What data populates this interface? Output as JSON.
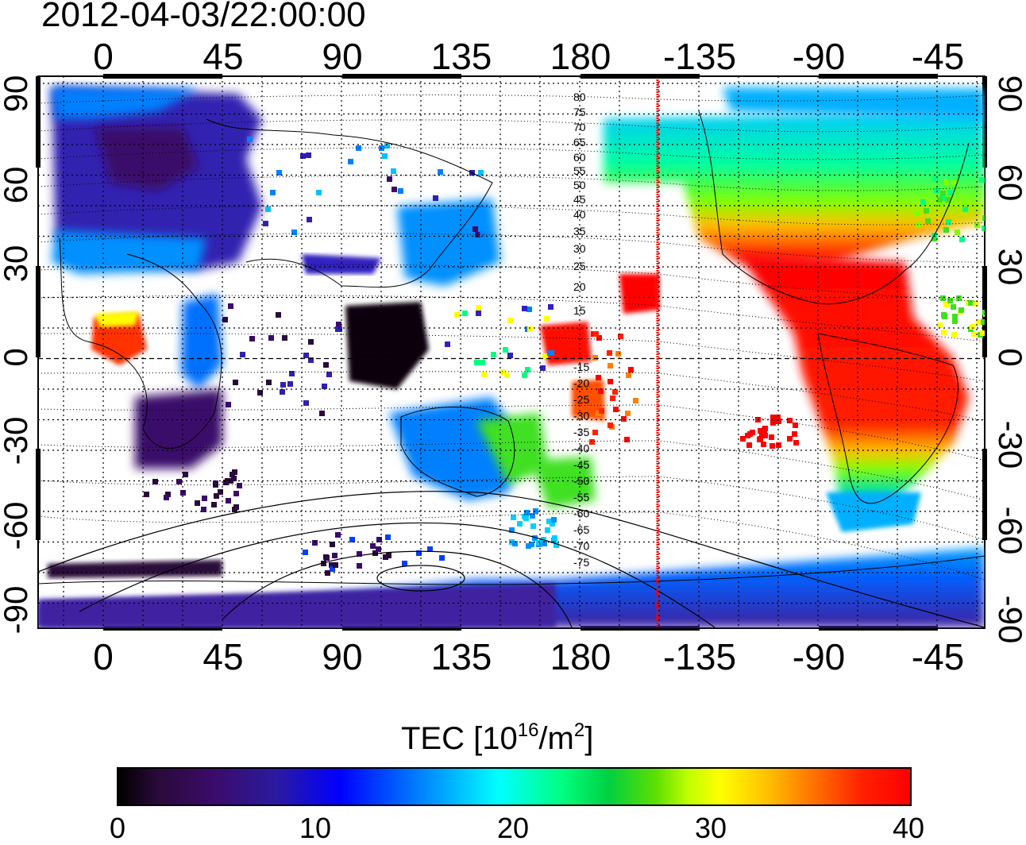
{
  "title": "2012-04-03/22:00:00",
  "lon_labels": [
    "0",
    "45",
    "90",
    "135",
    "180",
    "-135",
    "-90",
    "-45"
  ],
  "lat_labels": [
    "90",
    "60",
    "30",
    "0",
    "-30",
    "-60",
    "-90"
  ],
  "contour_labels_north": [
    "80",
    "75",
    "70",
    "65",
    "60",
    "55",
    "50",
    "45",
    "40",
    "35",
    "30",
    "25",
    "20",
    "15"
  ],
  "contour_labels_south": [
    "-15",
    "-20",
    "-25",
    "-30",
    "-35",
    "-40",
    "-45",
    "-50",
    "-55",
    "-60",
    "-65",
    "-70",
    "-75"
  ],
  "colorbar": {
    "title_prefix": "TEC  [10",
    "exp1": "16",
    "mid": "/m",
    "exp2": "2",
    "suffix": "]",
    "ticks": [
      "0",
      "10",
      "20",
      "30",
      "40"
    ],
    "min": 0,
    "max": 40
  },
  "colors": {
    "terminator": "#ff0000",
    "low": "#3b0b6a",
    "mid": "#00ffff",
    "high": "#ff0000"
  }
}
